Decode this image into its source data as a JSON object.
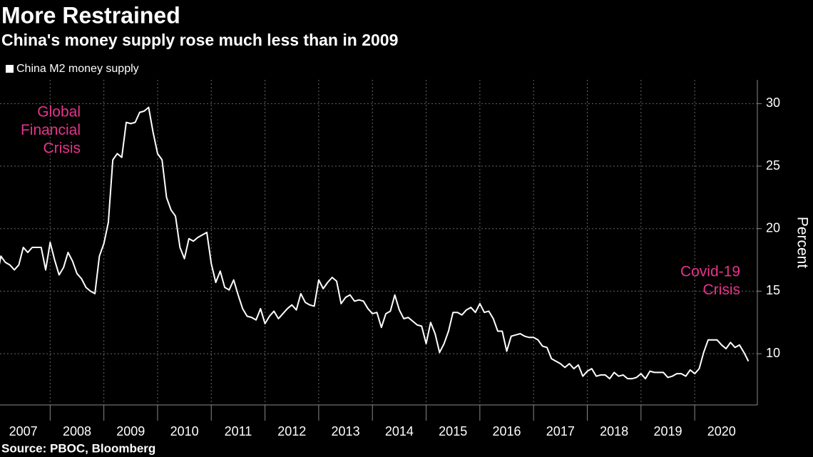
{
  "chart_data": {
    "type": "line",
    "title": "More Restrained",
    "subtitle": "China's money supply rose much less than in 2009",
    "ylabel": "Percent",
    "source": "Source: PBOC, Bloomberg",
    "annotations": [
      [
        "Global",
        "Financial",
        "Crisis"
      ],
      [
        "Covid-19",
        "Crisis"
      ]
    ],
    "annotation_color": "#e8338b",
    "xlim": [
      "2007-01",
      "2021-03"
    ],
    "xticks": [
      2007,
      2008,
      2009,
      2010,
      2011,
      2012,
      2013,
      2014,
      2015,
      2016,
      2017,
      2018,
      2019,
      2020
    ],
    "ylim": [
      5.9,
      31.9
    ],
    "yticks": [
      10,
      15,
      20,
      25,
      30
    ],
    "grid": true,
    "x": [
      "2007-01",
      "2007-02",
      "2007-03",
      "2007-04",
      "2007-05",
      "2007-06",
      "2007-07",
      "2007-08",
      "2007-09",
      "2007-10",
      "2007-11",
      "2007-12",
      "2008-01",
      "2008-02",
      "2008-03",
      "2008-04",
      "2008-05",
      "2008-06",
      "2008-07",
      "2008-08",
      "2008-09",
      "2008-10",
      "2008-11",
      "2008-12",
      "2009-01",
      "2009-02",
      "2009-03",
      "2009-04",
      "2009-05",
      "2009-06",
      "2009-07",
      "2009-08",
      "2009-09",
      "2009-10",
      "2009-11",
      "2009-12",
      "2010-01",
      "2010-02",
      "2010-03",
      "2010-04",
      "2010-05",
      "2010-06",
      "2010-07",
      "2010-08",
      "2010-09",
      "2010-10",
      "2010-11",
      "2010-12",
      "2011-01",
      "2011-02",
      "2011-03",
      "2011-04",
      "2011-05",
      "2011-06",
      "2011-07",
      "2011-08",
      "2011-09",
      "2011-10",
      "2011-11",
      "2011-12",
      "2012-01",
      "2012-02",
      "2012-03",
      "2012-04",
      "2012-05",
      "2012-06",
      "2012-07",
      "2012-08",
      "2012-09",
      "2012-10",
      "2012-11",
      "2012-12",
      "2013-01",
      "2013-02",
      "2013-03",
      "2013-04",
      "2013-05",
      "2013-06",
      "2013-07",
      "2013-08",
      "2013-09",
      "2013-10",
      "2013-11",
      "2013-12",
      "2014-01",
      "2014-02",
      "2014-03",
      "2014-04",
      "2014-05",
      "2014-06",
      "2014-07",
      "2014-08",
      "2014-09",
      "2014-10",
      "2014-11",
      "2014-12",
      "2015-01",
      "2015-02",
      "2015-03",
      "2015-04",
      "2015-05",
      "2015-06",
      "2015-07",
      "2015-08",
      "2015-09",
      "2015-10",
      "2015-11",
      "2015-12",
      "2016-01",
      "2016-02",
      "2016-03",
      "2016-04",
      "2016-05",
      "2016-06",
      "2016-07",
      "2016-08",
      "2016-09",
      "2016-10",
      "2016-11",
      "2016-12",
      "2017-01",
      "2017-02",
      "2017-03",
      "2017-04",
      "2017-05",
      "2017-06",
      "2017-07",
      "2017-08",
      "2017-09",
      "2017-10",
      "2017-11",
      "2017-12",
      "2018-01",
      "2018-02",
      "2018-03",
      "2018-04",
      "2018-05",
      "2018-06",
      "2018-07",
      "2018-08",
      "2018-09",
      "2018-10",
      "2018-11",
      "2018-12",
      "2019-01",
      "2019-02",
      "2019-03",
      "2019-04",
      "2019-05",
      "2019-06",
      "2019-07",
      "2019-08",
      "2019-09",
      "2019-10",
      "2019-11",
      "2019-12",
      "2020-01",
      "2020-02",
      "2020-03",
      "2020-04",
      "2020-05",
      "2020-06",
      "2020-07",
      "2020-08",
      "2020-09",
      "2020-10",
      "2020-11",
      "2020-12",
      "2021-01"
    ],
    "series": [
      {
        "name": "China M2 money supply",
        "color": "#ffffff",
        "values": [
          15.9,
          17.8,
          17.3,
          17.1,
          16.7,
          17.1,
          18.5,
          18.1,
          18.5,
          18.5,
          18.5,
          16.7,
          18.9,
          17.5,
          16.3,
          16.9,
          18.1,
          17.4,
          16.4,
          16.0,
          15.3,
          15.0,
          14.8,
          17.8,
          18.8,
          20.5,
          25.5,
          26.0,
          25.7,
          28.5,
          28.4,
          28.5,
          29.3,
          29.4,
          29.7,
          27.7,
          26.0,
          25.5,
          22.5,
          21.5,
          21.0,
          18.5,
          17.6,
          19.2,
          19.0,
          19.3,
          19.5,
          19.7,
          17.2,
          15.7,
          16.6,
          15.3,
          15.1,
          15.9,
          14.7,
          13.6,
          13.0,
          12.9,
          12.7,
          13.6,
          12.4,
          13.0,
          13.4,
          12.8,
          13.2,
          13.6,
          13.9,
          13.5,
          14.8,
          14.1,
          13.9,
          13.8,
          15.9,
          15.2,
          15.7,
          16.1,
          15.8,
          14.0,
          14.5,
          14.7,
          14.2,
          14.3,
          14.2,
          13.6,
          13.2,
          13.3,
          12.1,
          13.2,
          13.4,
          14.7,
          13.5,
          12.8,
          12.9,
          12.6,
          12.3,
          12.2,
          10.8,
          12.5,
          11.6,
          10.1,
          10.8,
          11.8,
          13.3,
          13.3,
          13.1,
          13.5,
          13.7,
          13.3,
          14.0,
          13.3,
          13.4,
          12.8,
          11.8,
          11.8,
          10.2,
          11.4,
          11.5,
          11.6,
          11.4,
          11.3,
          11.3,
          11.1,
          10.6,
          10.5,
          9.6,
          9.4,
          9.2,
          8.9,
          9.2,
          8.8,
          9.1,
          8.2,
          8.6,
          8.8,
          8.2,
          8.3,
          8.3,
          8.0,
          8.5,
          8.2,
          8.3,
          8.0,
          8.0,
          8.1,
          8.4,
          8.0,
          8.6,
          8.5,
          8.5,
          8.5,
          8.1,
          8.2,
          8.4,
          8.4,
          8.2,
          8.7,
          8.4,
          8.8,
          10.1,
          11.1,
          11.1,
          11.1,
          10.7,
          10.4,
          10.9,
          10.5,
          10.7,
          10.1,
          9.4
        ]
      }
    ]
  }
}
